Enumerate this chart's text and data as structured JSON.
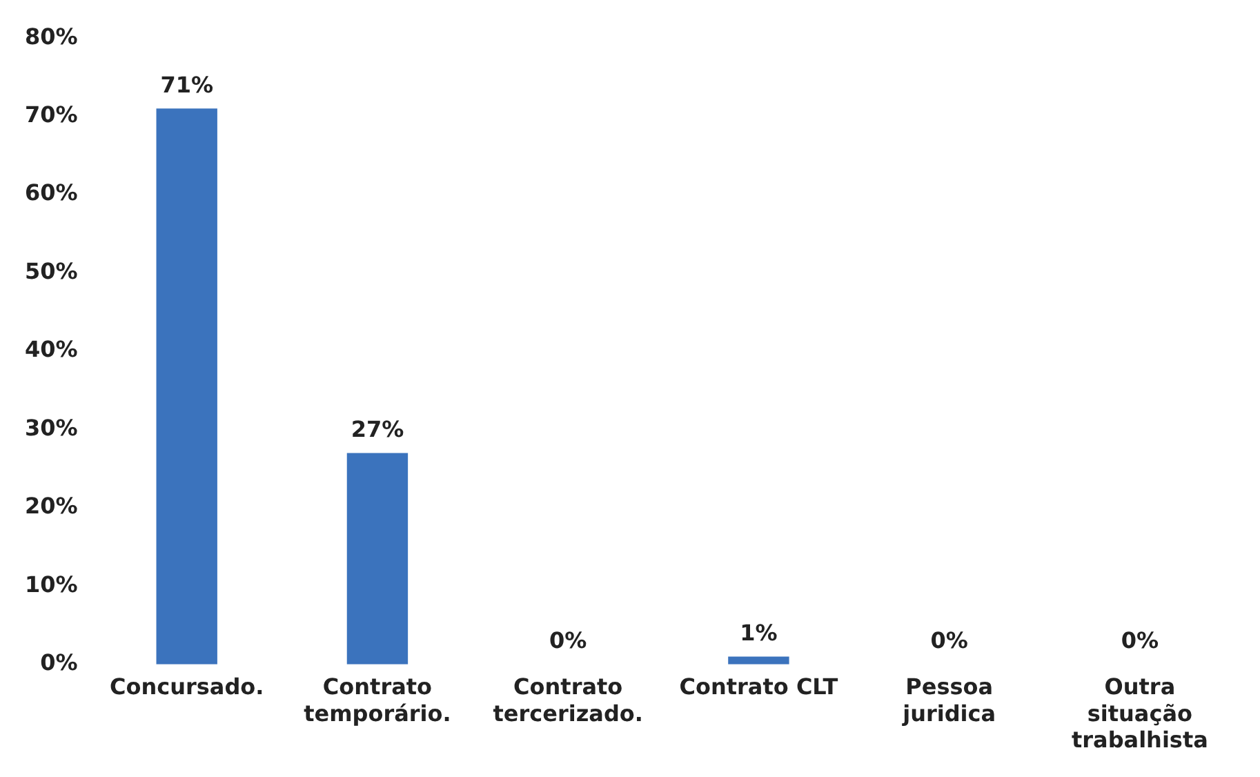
{
  "chart_data": {
    "type": "bar",
    "categories": [
      "Concursado.",
      "Contrato temporário.",
      "Contrato tercerizado.",
      "Contrato CLT",
      "Pessoa juridica",
      "Outra situação trabalhista"
    ],
    "values": [
      71,
      27,
      0,
      1,
      0,
      0
    ],
    "value_labels": [
      "71%",
      "27%",
      "0%",
      "1%",
      "0%",
      "0%"
    ],
    "color": "#3b73bd",
    "ylim": [
      0,
      80
    ],
    "yticks": [
      {
        "value": 0,
        "label": "0%"
      },
      {
        "value": 10,
        "label": "10%"
      },
      {
        "value": 20,
        "label": "20%"
      },
      {
        "value": 30,
        "label": "30%"
      },
      {
        "value": 40,
        "label": "40%"
      },
      {
        "value": 50,
        "label": "50%"
      },
      {
        "value": 60,
        "label": "60%"
      },
      {
        "value": 70,
        "label": "70%"
      },
      {
        "value": 80,
        "label": "80%"
      }
    ],
    "grid": false,
    "legend": false
  }
}
